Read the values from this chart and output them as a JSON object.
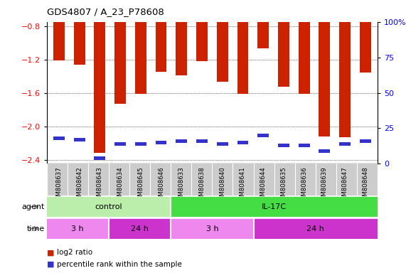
{
  "title": "GDS4807 / A_23_P78608",
  "samples": [
    "GSM808637",
    "GSM808642",
    "GSM808643",
    "GSM808634",
    "GSM808645",
    "GSM808646",
    "GSM808633",
    "GSM808638",
    "GSM808640",
    "GSM808641",
    "GSM808644",
    "GSM808635",
    "GSM808636",
    "GSM808639",
    "GSM808647",
    "GSM808648"
  ],
  "log2_ratio": [
    -1.21,
    -1.26,
    -2.32,
    -1.73,
    -1.61,
    -1.35,
    -1.39,
    -1.22,
    -1.47,
    -1.61,
    -1.07,
    -1.53,
    -1.61,
    -2.12,
    -2.13,
    -1.36
  ],
  "percentile": [
    18,
    17,
    4,
    14,
    14,
    15,
    16,
    16,
    14,
    15,
    20,
    13,
    13,
    9,
    14,
    16
  ],
  "ylim_left": [
    -2.45,
    -0.75
  ],
  "ylim_right": [
    0,
    100
  ],
  "yticks_left": [
    -2.4,
    -2.0,
    -1.6,
    -1.2,
    -0.8
  ],
  "yticks_right": [
    0,
    25,
    50,
    75,
    100
  ],
  "ytick_labels_right": [
    "0",
    "25",
    "50",
    "75",
    "100%"
  ],
  "bar_color_red": "#cc2200",
  "bar_color_blue": "#3333cc",
  "bar_width": 0.55,
  "plot_bg_color": "#ffffff",
  "tick_label_area_color": "#cccccc",
  "agent_control_color": "#bbeeaa",
  "agent_il17c_color": "#44dd44",
  "time_3h_color": "#ee88ee",
  "time_24h_color": "#cc33cc",
  "groups_agent": [
    [
      0,
      6,
      "control"
    ],
    [
      6,
      16,
      "IL-17C"
    ]
  ],
  "groups_time": [
    [
      0,
      3,
      "3 h"
    ],
    [
      3,
      6,
      "24 h"
    ],
    [
      6,
      10,
      "3 h"
    ],
    [
      10,
      16,
      "24 h"
    ]
  ]
}
